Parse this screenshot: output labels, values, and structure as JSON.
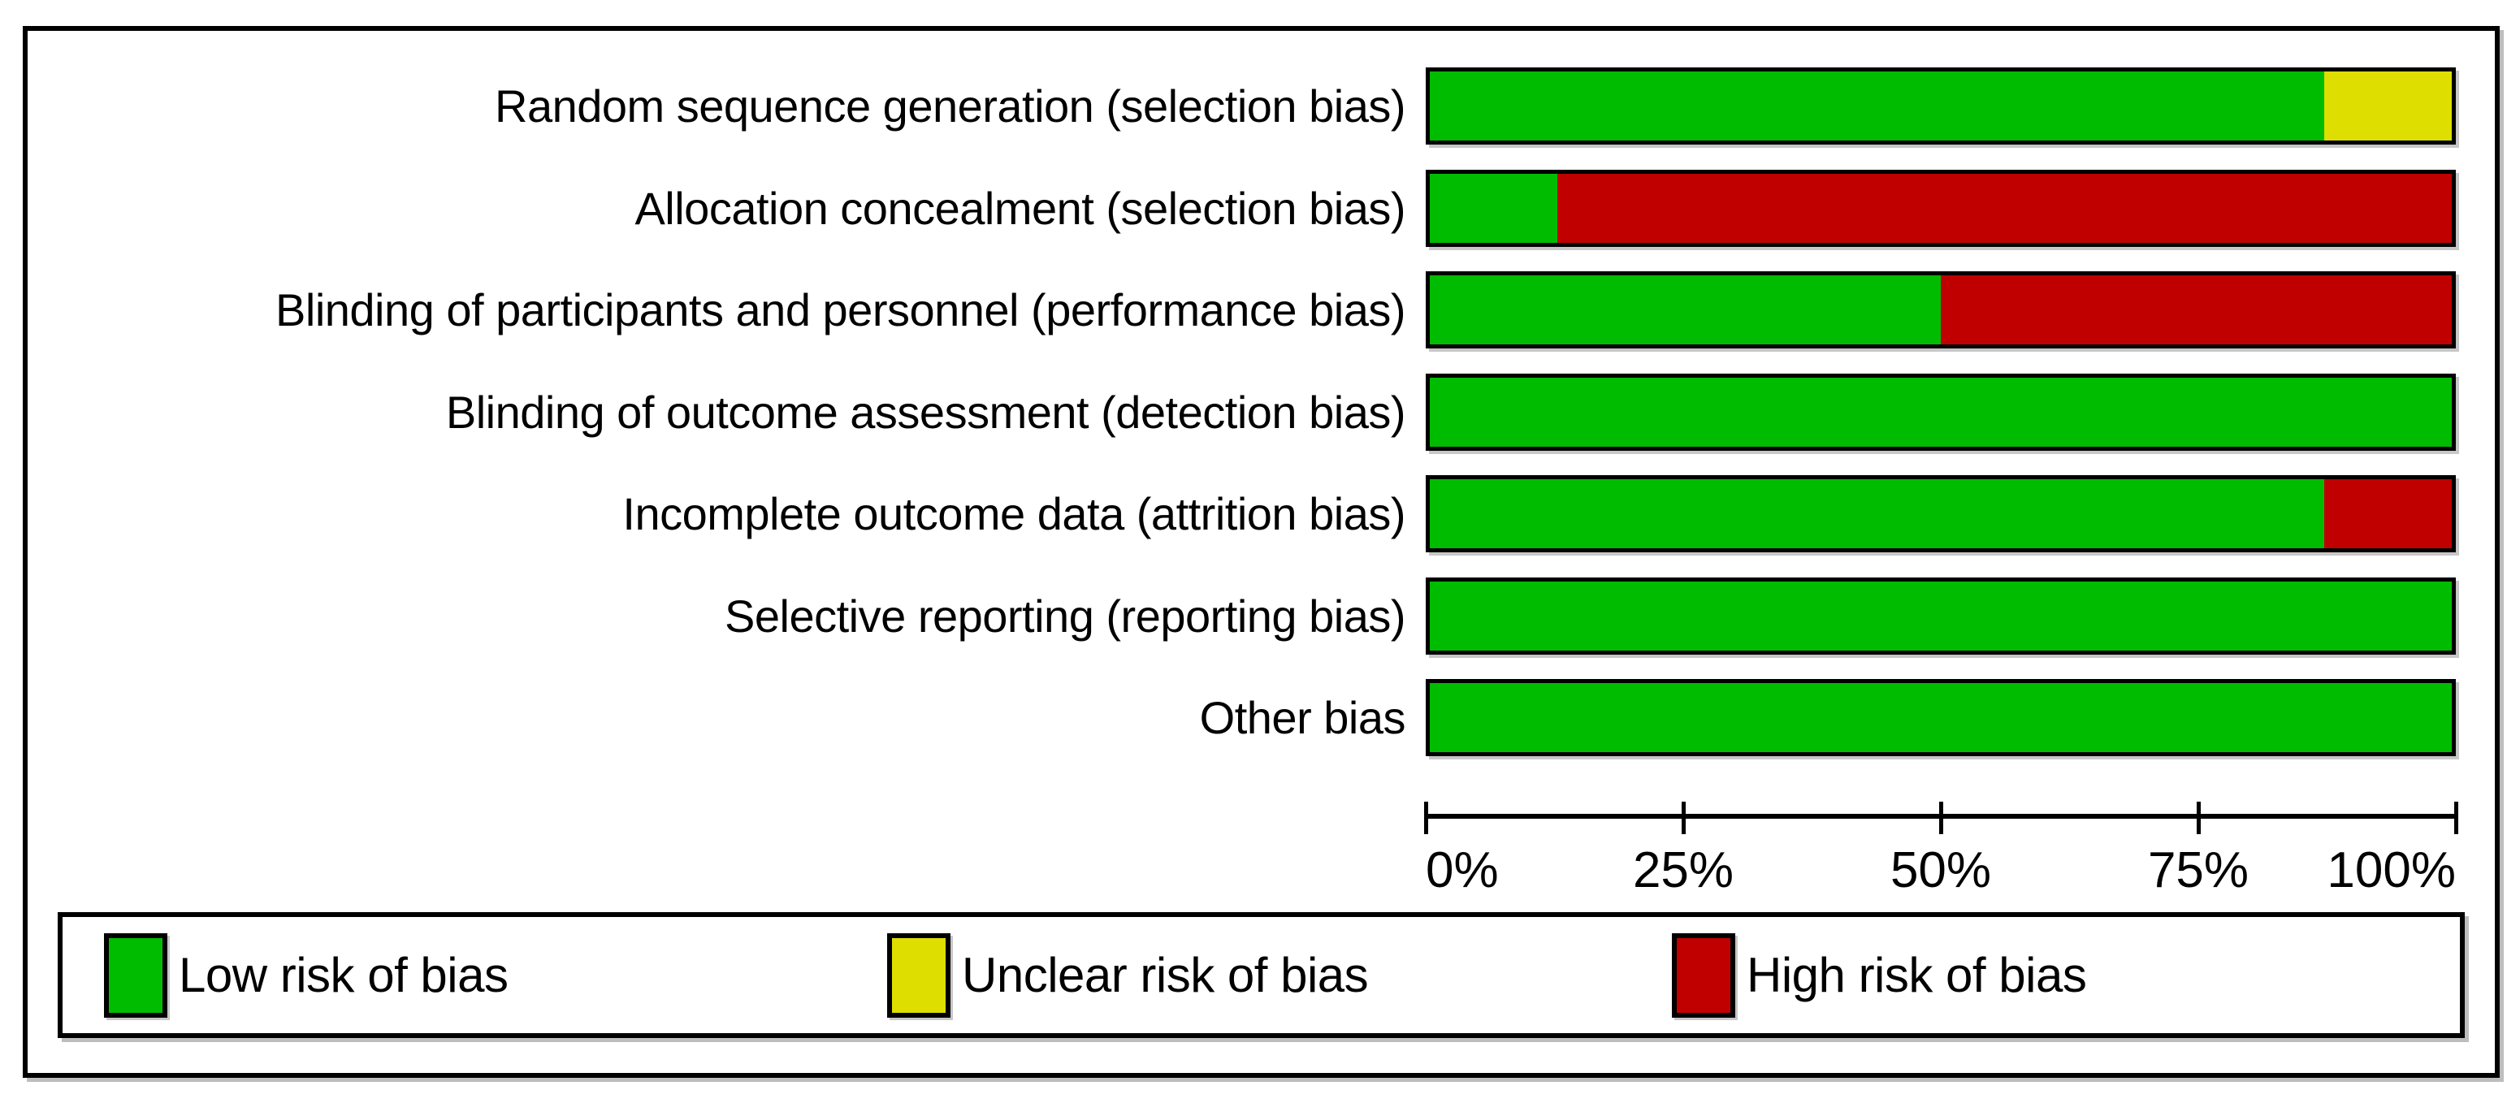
{
  "chart_data": {
    "type": "bar",
    "subtype": "horizontal_stacked_percent",
    "title": "",
    "xlabel": "",
    "ylabel": "",
    "categories": [
      "Random sequence generation (selection bias)",
      "Allocation concealment (selection bias)",
      "Blinding of participants and personnel (performance bias)",
      "Blinding of outcome assessment (detection bias)",
      "Incomplete outcome data (attrition bias)",
      "Selective reporting (reporting bias)",
      "Other bias"
    ],
    "series": [
      {
        "name": "Low risk of bias",
        "color": "#00bc00",
        "values": [
          87.5,
          12.5,
          50,
          100,
          87.5,
          100,
          100
        ]
      },
      {
        "name": "Unclear risk of bias",
        "color": "#dede00",
        "values": [
          12.5,
          0,
          0,
          0,
          0,
          0,
          0
        ]
      },
      {
        "name": "High risk of bias",
        "color": "#c00000",
        "values": [
          0,
          87.5,
          50,
          0,
          12.5,
          0,
          0
        ]
      }
    ],
    "x_ticks": [
      "0%",
      "25%",
      "50%",
      "75%",
      "100%"
    ],
    "xlim": [
      0,
      100
    ],
    "grid": false,
    "legend_position": "bottom"
  },
  "legend": {
    "items": [
      {
        "label": "Low risk of bias",
        "color": "#00bc00"
      },
      {
        "label": "Unclear risk of bias",
        "color": "#dede00"
      },
      {
        "label": "High risk of bias",
        "color": "#c00000"
      }
    ]
  },
  "layout_colors": {
    "background": "#ffffff",
    "border": "#000000"
  }
}
